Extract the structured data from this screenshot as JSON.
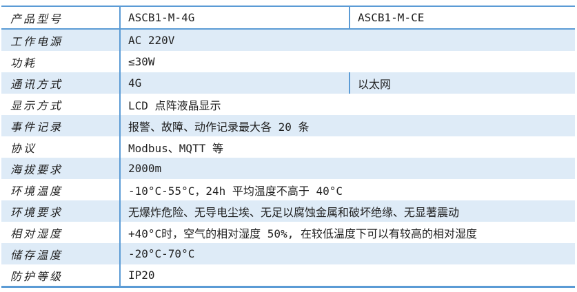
{
  "table": {
    "colors": {
      "border": "#5B9BD5",
      "row_fill": "#DEEBF7",
      "text": "#1f1f1f",
      "background": "#ffffff"
    },
    "rows": [
      {
        "label": "产品型号",
        "values": [
          "ASCB1-M-4G",
          "ASCB1-M-CE"
        ]
      },
      {
        "label": "工作电源",
        "values": [
          "AC 220V"
        ]
      },
      {
        "label": "功耗",
        "values": [
          "≤30W"
        ]
      },
      {
        "label": "通讯方式",
        "values": [
          "4G",
          "以太网"
        ]
      },
      {
        "label": "显示方式",
        "values": [
          "LCD 点阵液晶显示"
        ]
      },
      {
        "label": "事件记录",
        "values": [
          "报警、故障、动作记录最大各 20 条"
        ]
      },
      {
        "label": "协议",
        "values": [
          "Modbus、MQTT 等"
        ]
      },
      {
        "label": "海拔要求",
        "values": [
          "2000m"
        ]
      },
      {
        "label": "环境温度",
        "values": [
          "-10°C-55°C，24h 平均温度不高于 40°C"
        ]
      },
      {
        "label": "环境要求",
        "values": [
          "无爆炸危险、无导电尘埃、无足以腐蚀金属和破坏绝缘、无显著震动"
        ]
      },
      {
        "label": "相对湿度",
        "values": [
          "+40°C时，空气的相对湿度 50%, 在较低温度下可以有较高的相对湿度"
        ]
      },
      {
        "label": "储存温度",
        "values": [
          "-20°C-70°C"
        ]
      },
      {
        "label": "防护等级",
        "values": [
          "IP20"
        ]
      }
    ]
  }
}
